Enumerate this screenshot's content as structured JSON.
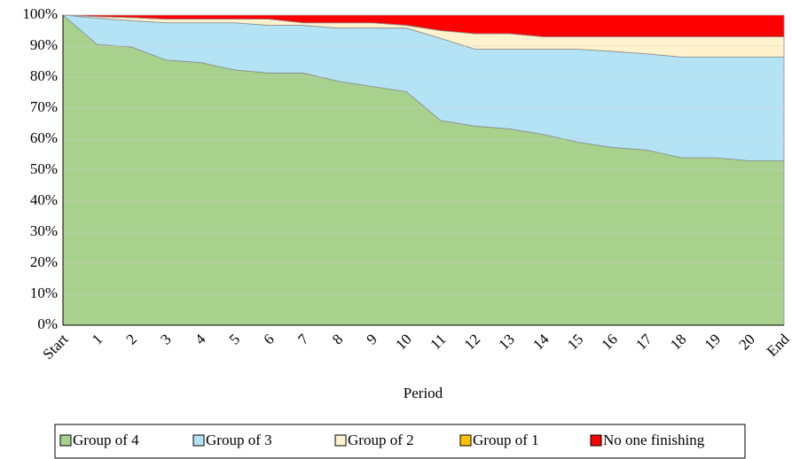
{
  "chart_data": {
    "type": "stacked_area",
    "x_label": "Period",
    "categories": [
      "Start",
      "1",
      "2",
      "3",
      "4",
      "5",
      "6",
      "7",
      "8",
      "9",
      "10",
      "11",
      "12",
      "13",
      "14",
      "15",
      "16",
      "17",
      "18",
      "19",
      "20",
      "End"
    ],
    "series": [
      {
        "name": "Group of 4",
        "color": "#a9d18e",
        "values": [
          100,
          90.5,
          89.7,
          85.5,
          84.7,
          82.3,
          81.3,
          81.3,
          78.7,
          77,
          75.3,
          66,
          64.2,
          63.3,
          61.5,
          59,
          57.3,
          56.5,
          54,
          54,
          53,
          53
        ]
      },
      {
        "name": "Group of 3",
        "color": "#b4e3f5",
        "values": [
          0,
          8.5,
          8.5,
          12,
          12.8,
          15.2,
          15.4,
          15.4,
          17.1,
          18.8,
          20.5,
          26.5,
          24.8,
          25.7,
          27.5,
          30,
          31,
          31,
          32.5,
          32.5,
          33.5,
          33.5
        ]
      },
      {
        "name": "Group of 2",
        "color": "#fff2cc",
        "values": [
          0,
          0.5,
          1,
          1.2,
          1.2,
          1.2,
          2,
          0.8,
          1.7,
          1.7,
          0.9,
          2.5,
          5,
          5,
          4,
          4,
          4.7,
          5.5,
          6.5,
          6.5,
          6.5,
          6.5
        ]
      },
      {
        "name": "Group of 1",
        "color": "#ffc000",
        "values": [
          0,
          0,
          0,
          0,
          0,
          0,
          0,
          0,
          0,
          0,
          0,
          0,
          0,
          0,
          0,
          0,
          0,
          0,
          0,
          0,
          0,
          0
        ]
      },
      {
        "name": "No one finishing",
        "color": "#ff0000",
        "values": [
          0,
          0.5,
          0.8,
          1.3,
          1.3,
          1.3,
          1.3,
          2.5,
          2.5,
          2.5,
          3.3,
          5,
          6,
          6,
          7,
          7,
          7,
          7,
          7,
          7,
          7,
          7
        ]
      }
    ],
    "ylim": [
      0,
      100
    ],
    "yticks": [
      {
        "value": 0,
        "label": "0%"
      },
      {
        "value": 10,
        "label": "10%"
      },
      {
        "value": 20,
        "label": "20%"
      },
      {
        "value": 30,
        "label": "30%"
      },
      {
        "value": 40,
        "label": "40%"
      },
      {
        "value": 50,
        "label": "50%"
      },
      {
        "value": 60,
        "label": "60%"
      },
      {
        "value": 70,
        "label": "70%"
      },
      {
        "value": 80,
        "label": "80%"
      },
      {
        "value": 90,
        "label": "90%"
      },
      {
        "value": 100,
        "label": "100%"
      }
    ],
    "grid": true
  }
}
